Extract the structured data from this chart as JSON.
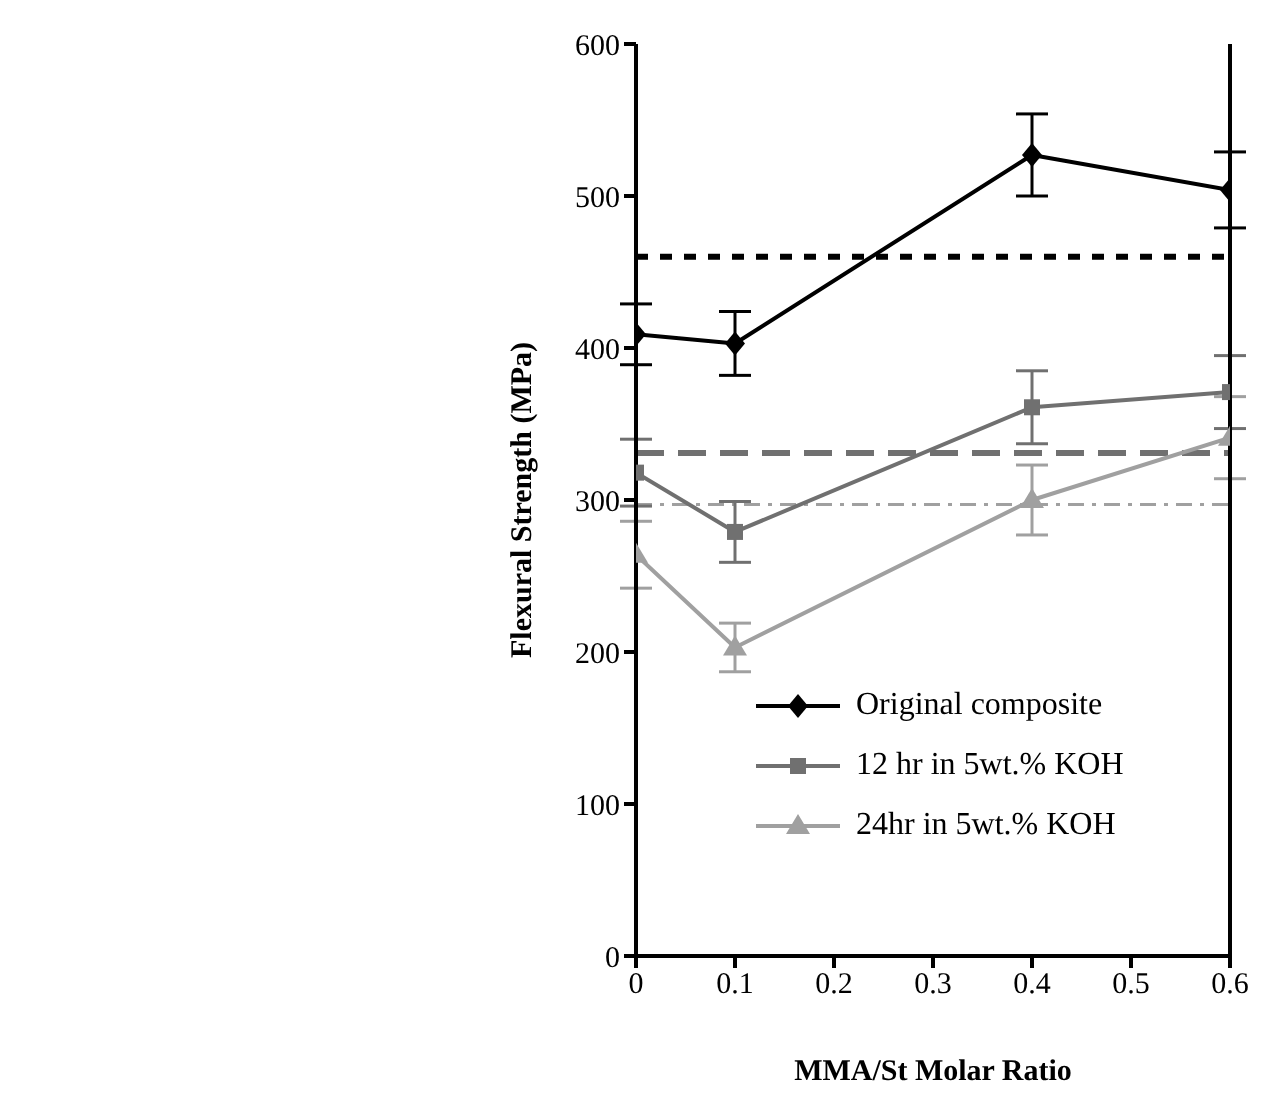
{
  "chart_data": {
    "type": "line",
    "xlabel": "MMA/St Molar Ratio",
    "ylabel": "Flexural Strength (MPa)",
    "x": [
      0,
      0.1,
      0.4,
      0.6
    ],
    "series": [
      {
        "name": "Original composite",
        "color": "#000000",
        "marker": "diamond",
        "values": [
          409,
          403,
          527,
          504
        ],
        "errors": [
          20,
          21,
          27,
          25
        ]
      },
      {
        "name": "12 hr in 5wt.% KOH",
        "color": "#707070",
        "marker": "square",
        "values": [
          318,
          279,
          361,
          371
        ],
        "errors": [
          22,
          20,
          24,
          24
        ]
      },
      {
        "name": "24hr in 5wt.% KOH",
        "color": "#a0a0a0",
        "marker": "triangle",
        "values": [
          264,
          203,
          300,
          341
        ],
        "errors": [
          22,
          16,
          23,
          27
        ]
      }
    ],
    "ref_lines": [
      {
        "axis": "y",
        "value": 460,
        "color": "#000000",
        "line_style": "dotted"
      },
      {
        "axis": "y",
        "value": 331,
        "color": "#707070",
        "line_style": "dashed"
      },
      {
        "axis": "y",
        "value": 297,
        "color": "#a0a0a0",
        "line_style": "dashdot"
      }
    ],
    "xlim": [
      0,
      0.6
    ],
    "xticks": [
      0,
      0.1,
      0.2,
      0.3,
      0.4,
      0.5,
      0.6
    ],
    "ylim": [
      0,
      600
    ],
    "yticks": [
      0,
      100,
      200,
      300,
      400,
      500,
      600
    ],
    "grid": false,
    "legend": "bottom right",
    "line_style": "solid"
  }
}
